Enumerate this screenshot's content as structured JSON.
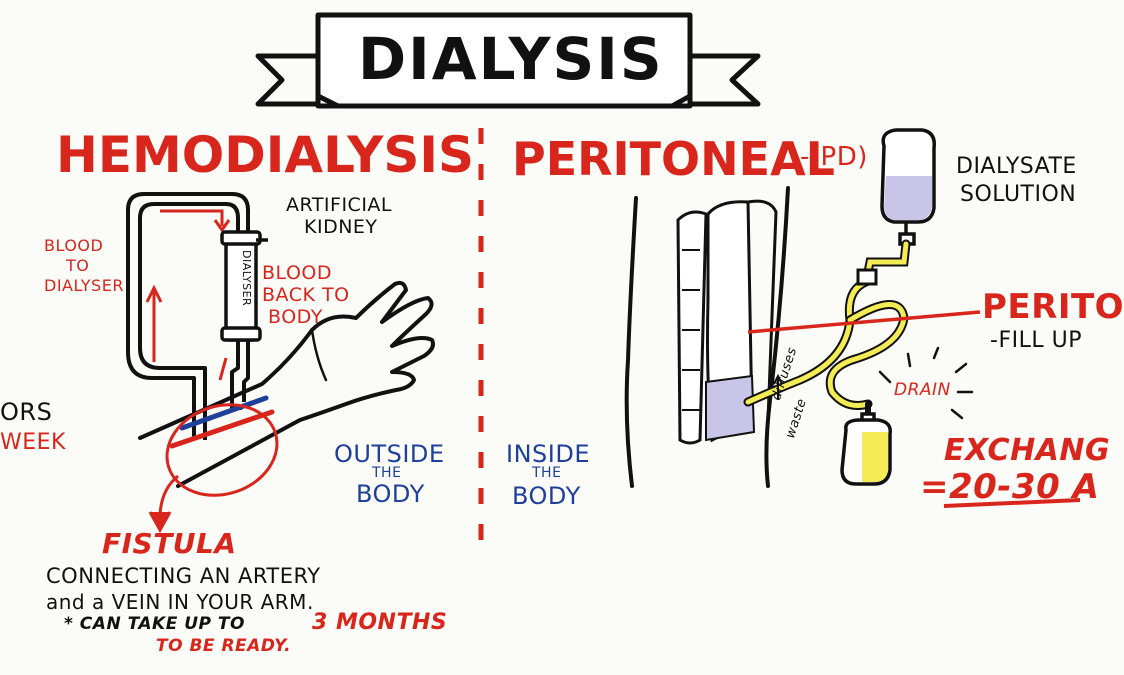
{
  "title": "DIALYSIS",
  "left": {
    "heading": "HEMODIALYSIS",
    "artificial_kidney": [
      "ARTIFICIAL",
      "KIDNEY"
    ],
    "blood_to_dialyser": [
      "BLOOD",
      "TO",
      "DIALYSER"
    ],
    "blood_back": [
      "BLOOD",
      "BACK TO",
      "BODY"
    ],
    "dialyser_label": "DIALYSER",
    "outside_body": [
      "OUTSIDE",
      "THE",
      "BODY"
    ],
    "fistula": "FISTULA",
    "fistula_desc": [
      "CONNECTING AN ARTERY",
      "and a VEIN IN YOUR ARM."
    ],
    "note_prefix": "* CAN TAKE UP TO",
    "note_highlight": "3 MONTHS",
    "note_suffix": "TO BE READY."
  },
  "left_edge_fragments": [
    "ORS",
    "WEEK"
  ],
  "right": {
    "heading": "PERITONEAL",
    "heading_abbr": "-(PD)",
    "dialysate": [
      "DIALYSATE",
      "SOLUTION"
    ],
    "inside_body": [
      "INSIDE",
      "THE",
      "BODY"
    ],
    "perito": "PERITO",
    "fill_up": "-FILL UP",
    "drain": "DRAIN",
    "diffuses_waste": [
      "diffuses",
      "waste"
    ],
    "exchange": "EXCHANG",
    "exchange_time": "=20-30 A"
  },
  "colors": {
    "red": "#d8261c",
    "blue": "#1e3f9a",
    "black": "#111111",
    "yellow": "#f4ec55",
    "lavender": "#c9c5e8"
  }
}
